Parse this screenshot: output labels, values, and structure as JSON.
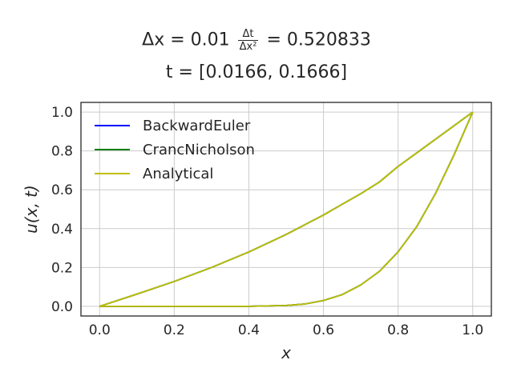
{
  "title": {
    "dx_prefix": "Δx = 0.01",
    "frac_num": "Δt",
    "frac_den": "Δx²",
    "ratio_suffix": "= 0.520833",
    "time_line": "t = [0.0166, 0.1666]"
  },
  "chart_data": {
    "type": "line",
    "xlabel": "x",
    "ylabel": "u(x, t)",
    "xlim": [
      -0.05,
      1.05
    ],
    "ylim": [
      -0.05,
      1.05
    ],
    "xticks": [
      "0.0",
      "0.2",
      "0.4",
      "0.6",
      "0.8",
      "1.0"
    ],
    "yticks": [
      "0.0",
      "0.2",
      "0.4",
      "0.6",
      "0.8",
      "1.0"
    ],
    "grid": true,
    "legend_position": "top-left",
    "x": [
      0.0,
      0.1,
      0.2,
      0.3,
      0.4,
      0.5,
      0.55,
      0.6,
      0.65,
      0.7,
      0.75,
      0.8,
      0.85,
      0.9,
      0.95,
      1.0
    ],
    "series": [
      {
        "name": "BackwardEuler",
        "color": "#0000ff",
        "time": 0.0166,
        "values": [
          0.0,
          0.0,
          0.0,
          0.0,
          0.0,
          0.004,
          0.012,
          0.03,
          0.06,
          0.11,
          0.18,
          0.28,
          0.41,
          0.58,
          0.78,
          1.0
        ]
      },
      {
        "name": "BackwardEuler",
        "color": "#0000ff",
        "time": 0.1666,
        "values": [
          0.0,
          0.063,
          0.128,
          0.2,
          0.28,
          0.37,
          0.42,
          0.47,
          0.525,
          0.58,
          0.64,
          0.72,
          0.79,
          0.86,
          0.93,
          1.0
        ]
      },
      {
        "name": "CrancNicholson",
        "color": "#008000",
        "time": 0.0166,
        "values": [
          0.0,
          0.0,
          0.0,
          0.0,
          0.0,
          0.004,
          0.012,
          0.03,
          0.06,
          0.11,
          0.18,
          0.28,
          0.41,
          0.58,
          0.78,
          1.0
        ]
      },
      {
        "name": "CrancNicholson",
        "color": "#008000",
        "time": 0.1666,
        "values": [
          0.0,
          0.063,
          0.128,
          0.2,
          0.28,
          0.37,
          0.42,
          0.47,
          0.525,
          0.58,
          0.64,
          0.72,
          0.79,
          0.86,
          0.93,
          1.0
        ]
      },
      {
        "name": "Analytical",
        "color": "#bfbf00",
        "time": 0.0166,
        "values": [
          0.0,
          0.0,
          0.0,
          0.0,
          0.0,
          0.004,
          0.012,
          0.03,
          0.06,
          0.11,
          0.18,
          0.28,
          0.41,
          0.58,
          0.78,
          1.0
        ]
      },
      {
        "name": "Analytical",
        "color": "#bfbf00",
        "time": 0.1666,
        "values": [
          0.0,
          0.063,
          0.128,
          0.2,
          0.28,
          0.37,
          0.42,
          0.47,
          0.525,
          0.58,
          0.64,
          0.72,
          0.79,
          0.86,
          0.93,
          1.0
        ]
      }
    ],
    "legend": [
      {
        "label": "BackwardEuler",
        "color": "#0000ff"
      },
      {
        "label": "CrancNicholson",
        "color": "#008000"
      },
      {
        "label": "Analytical",
        "color": "#bfbf00"
      }
    ]
  }
}
